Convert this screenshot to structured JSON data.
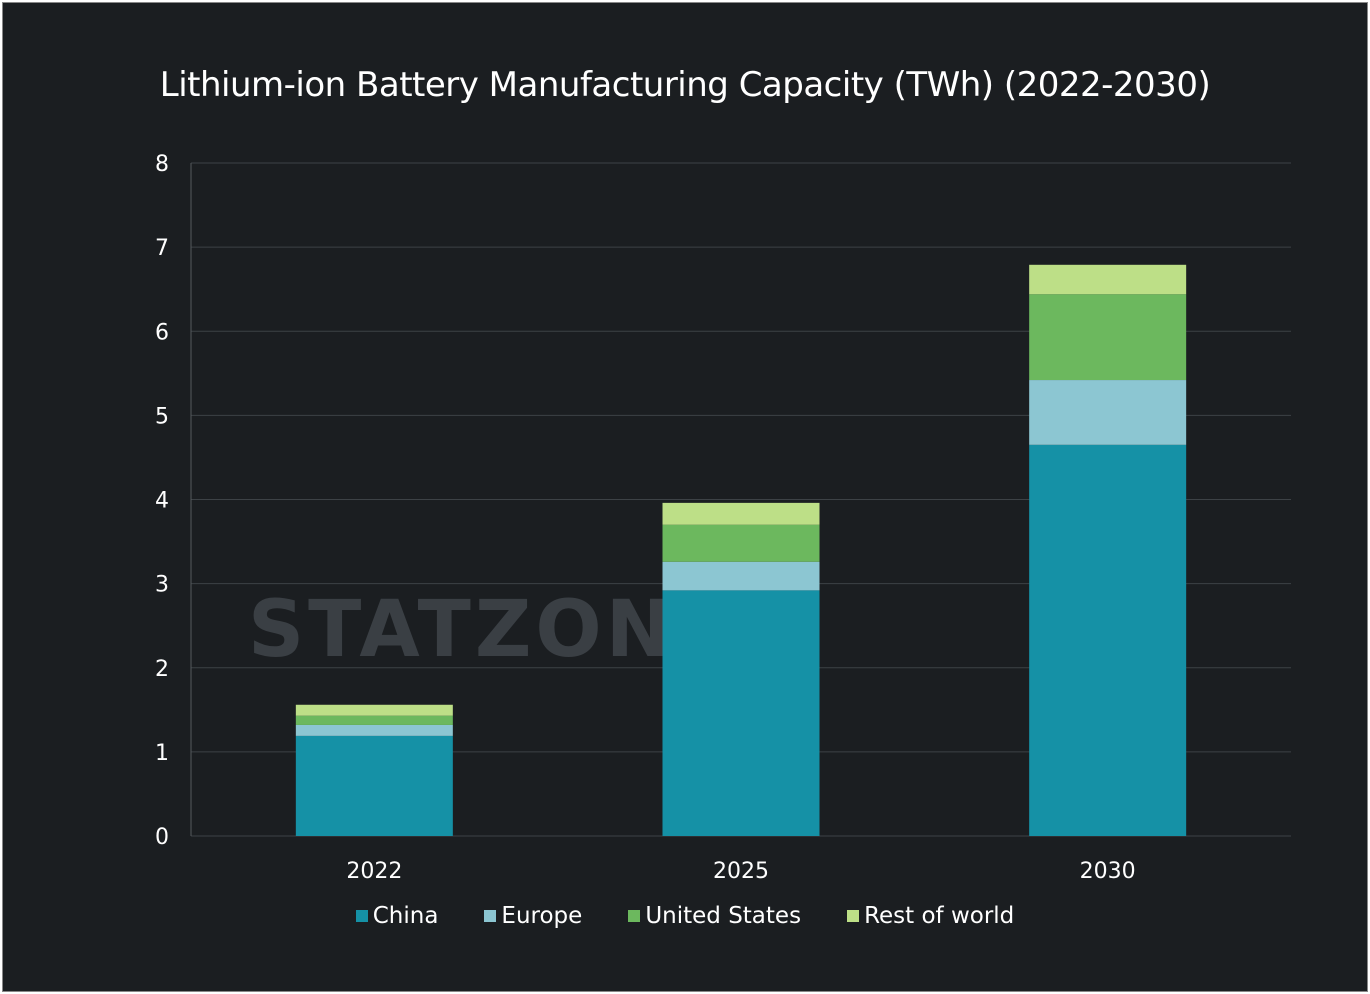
{
  "chart_data": {
    "type": "bar",
    "stacked": true,
    "title": "Lithium-ion Battery Manufacturing Capacity (TWh) (2022-2030)",
    "xlabel": "",
    "ylabel": "",
    "categories": [
      "2022",
      "2025",
      "2030"
    ],
    "ylim": [
      0,
      8
    ],
    "yticks": [
      "0",
      "1",
      "2",
      "3",
      "4",
      "5",
      "6",
      "7",
      "8"
    ],
    "grid": true,
    "legend": "bottom",
    "watermark": "STATZON",
    "series": [
      {
        "name": "China",
        "color": "#1591a6",
        "values": [
          1.19,
          2.92,
          4.65
        ]
      },
      {
        "name": "Europe",
        "color": "#8cc6d2",
        "values": [
          0.13,
          0.34,
          0.77
        ]
      },
      {
        "name": "United States",
        "color": "#6cb85e",
        "values": [
          0.11,
          0.44,
          1.02
        ]
      },
      {
        "name": "Rest of world",
        "color": "#bddf87",
        "values": [
          0.13,
          0.26,
          0.35
        ]
      }
    ]
  }
}
